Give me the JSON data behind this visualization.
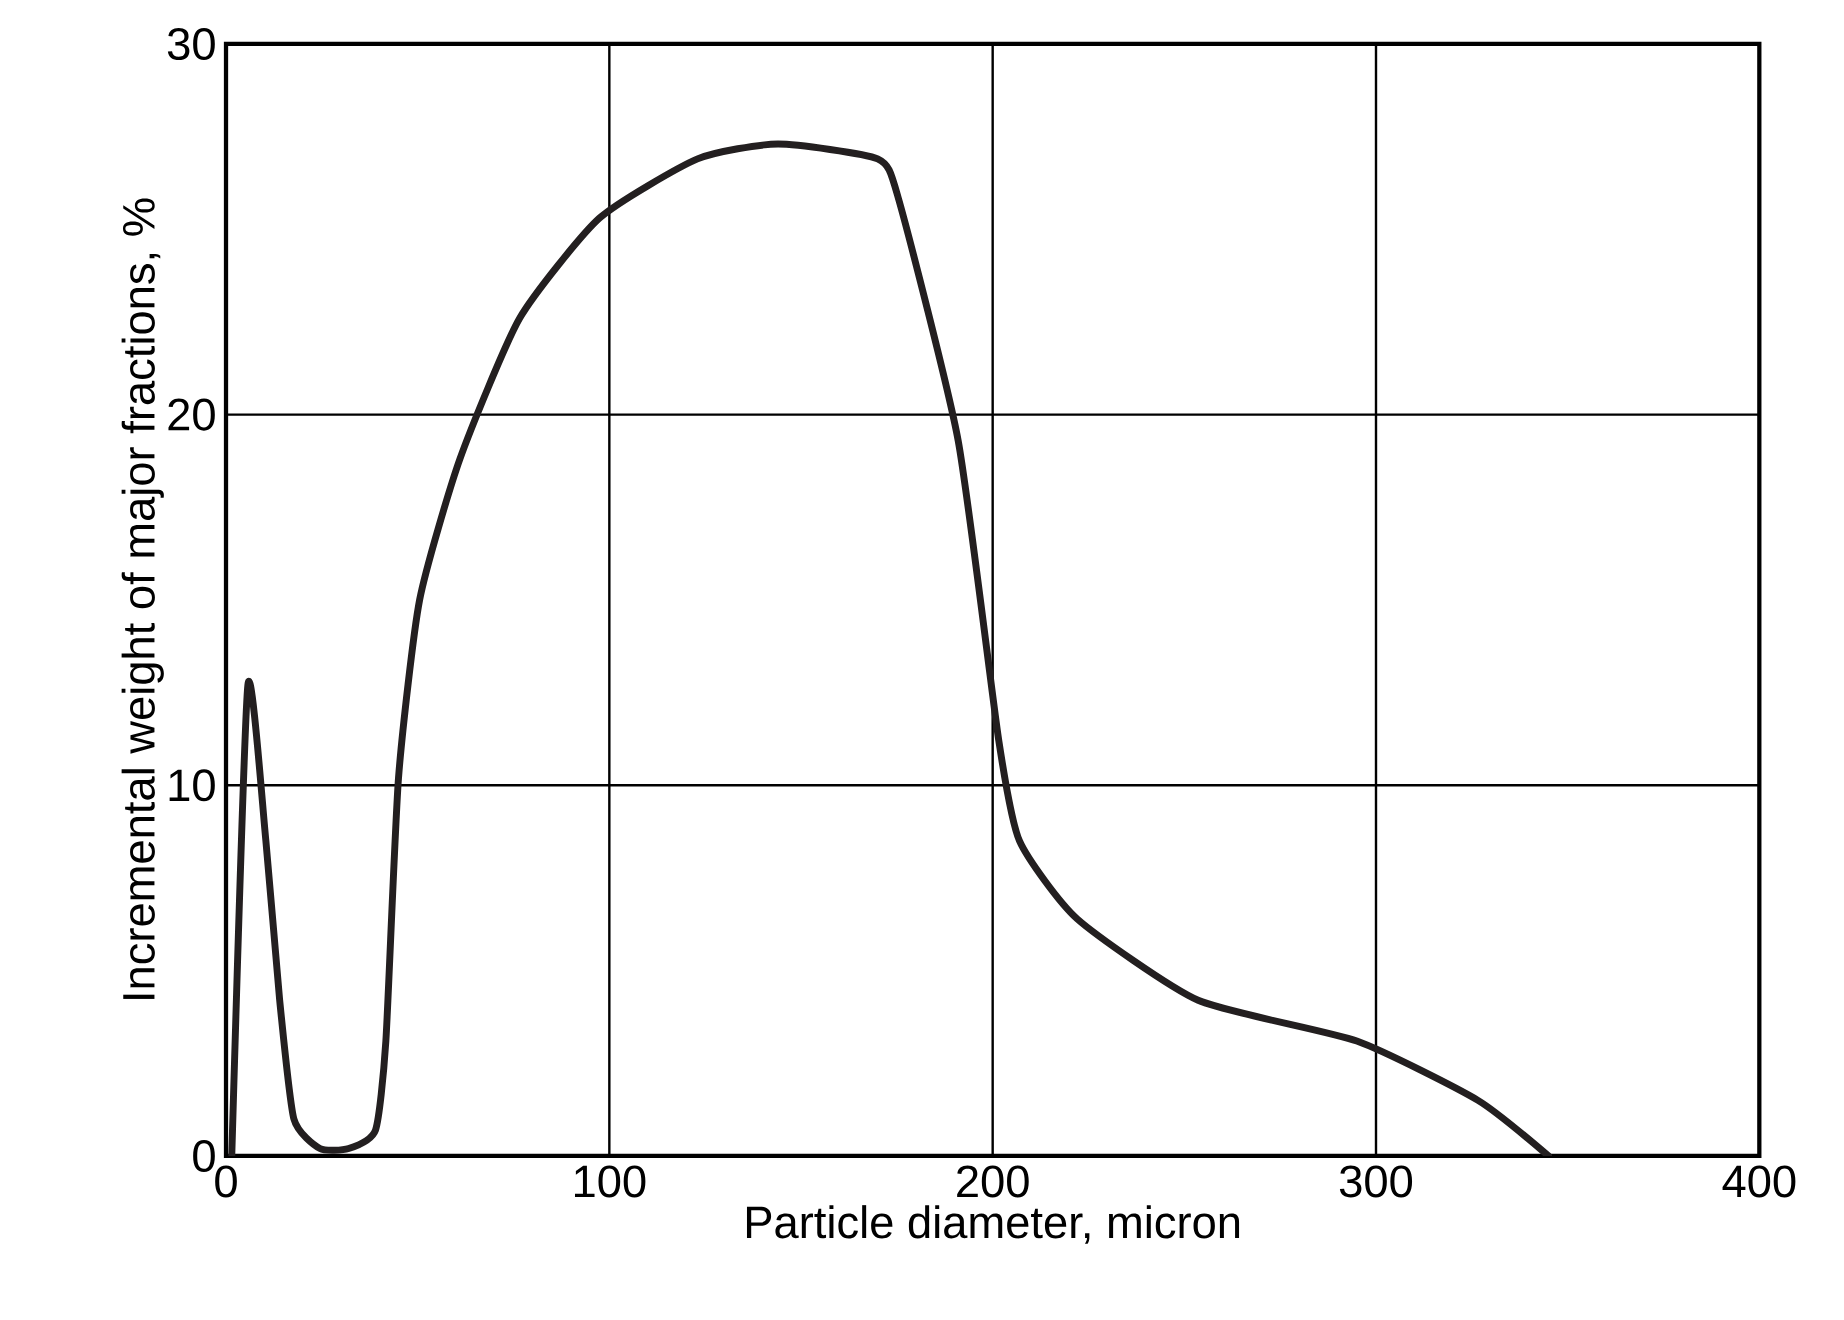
{
  "chart_data": {
    "type": "line",
    "xlabel": "Particle diameter, micron",
    "ylabel": "Incremental weight of major fractions, %",
    "x": [
      1.5,
      5.7,
      10.4,
      14,
      17.7,
      24.5,
      32,
      39,
      41.7,
      45,
      50.5,
      61,
      76.6,
      97.4,
      123,
      144,
      170,
      175.5,
      191,
      201.6,
      207,
      222,
      253.6,
      295,
      326.6,
      345
    ],
    "series": [
      {
        "color": "#231f20",
        "values": [
          0,
          12.7,
          8.5,
          4.2,
          1,
          0.2,
          0.2,
          0.7,
          3.1,
          10.2,
          15,
          18.8,
          22.6,
          25.3,
          26.9,
          27.3,
          26.9,
          25.8,
          19.3,
          11.2,
          8.5,
          6.4,
          4.2,
          3.1,
          1.5,
          0
        ]
      }
    ],
    "xlim": [
      0,
      400
    ],
    "ylim": [
      0,
      30
    ],
    "xticks": [
      0,
      100,
      200,
      300,
      400
    ],
    "yticks": [
      0,
      10,
      20,
      30
    ],
    "grid": true,
    "marker": "none",
    "line_style": "solid"
  }
}
